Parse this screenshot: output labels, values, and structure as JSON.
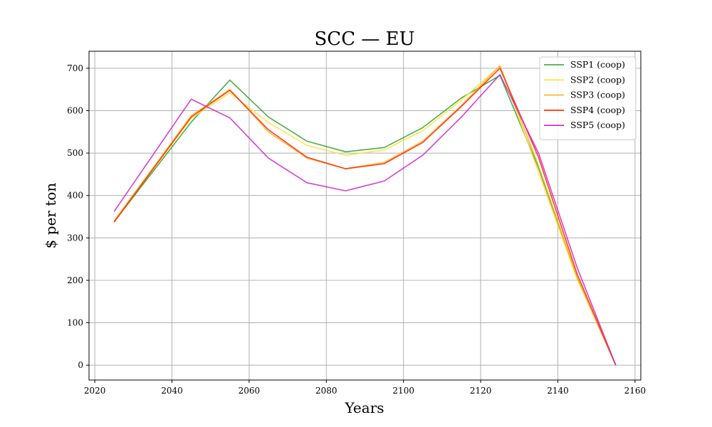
{
  "chart_data": {
    "type": "line",
    "title": "SCC — EU",
    "xlabel": "Years",
    "ylabel": "$ per ton",
    "xlim": [
      2018.5,
      2161.5
    ],
    "ylim": [
      -35,
      740
    ],
    "xticks": [
      2020,
      2040,
      2060,
      2080,
      2100,
      2120,
      2140,
      2160
    ],
    "yticks": [
      0,
      100,
      200,
      300,
      400,
      500,
      600,
      700
    ],
    "grid": true,
    "legend_position": "top-right",
    "x": [
      2025,
      2045,
      2055,
      2065,
      2075,
      2085,
      2095,
      2105,
      2115,
      2125,
      2135,
      2145,
      2155
    ],
    "series": [
      {
        "name": "SSP1 (coop)",
        "color": "#2ca02c",
        "values": [
          338,
          573,
          672,
          585,
          528,
          503,
          513,
          560,
          630,
          683,
          465,
          205,
          0
        ]
      },
      {
        "name": "SSP2 (coop)",
        "color": "#ffe033",
        "values": [
          340,
          582,
          642,
          572,
          518,
          495,
          507,
          553,
          625,
          705,
          455,
          203,
          0
        ]
      },
      {
        "name": "SSP3 (coop)",
        "color": "#ffb020",
        "values": [
          340,
          588,
          650,
          550,
          488,
          463,
          478,
          528,
          612,
          706,
          470,
          208,
          0
        ]
      },
      {
        "name": "SSP4 (coop)",
        "color": "#ff2200",
        "values": [
          337,
          585,
          648,
          555,
          490,
          463,
          475,
          525,
          610,
          700,
          490,
          215,
          0
        ]
      },
      {
        "name": "SSP5 (coop)",
        "color": "#cc22cc",
        "values": [
          362,
          627,
          583,
          488,
          430,
          411,
          434,
          495,
          585,
          685,
          500,
          230,
          0
        ]
      }
    ]
  }
}
